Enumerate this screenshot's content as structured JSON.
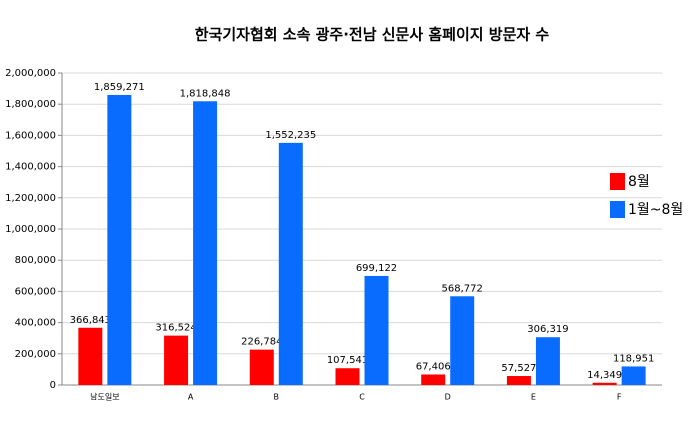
{
  "chart_data": {
    "type": "bar",
    "title": "한국기자협회 소속 광주·전남 신문사 홈페이지 방문자 수",
    "categories": [
      "남도일보",
      "A",
      "B",
      "C",
      "D",
      "E",
      "F"
    ],
    "series": [
      {
        "name": "8월",
        "color": "#ff0000",
        "values": [
          366843,
          316524,
          226784,
          107541,
          67406,
          57527,
          14349
        ],
        "value_labels": [
          "366,843",
          "316,524",
          "226,784",
          "107,541",
          "67,406",
          "57,527",
          "14,349"
        ]
      },
      {
        "name": "1월~8월",
        "color": "#0a6cff",
        "values": [
          1859271,
          1818848,
          1552235,
          699122,
          568772,
          306319,
          118951
        ],
        "value_labels": [
          "1,859,271",
          "1,818,848",
          "1,552,235",
          "699,122",
          "568,772",
          "306,319",
          "118,951"
        ]
      }
    ],
    "ylim": [
      0,
      2000000
    ],
    "yticks": [
      0,
      {
        "value": 200000,
        "label": "200,000"
      },
      {
        "value": 400000,
        "label": "400,000"
      },
      {
        "value": 600000,
        "label": "600,000"
      },
      {
        "value": 800000,
        "label": "800,000"
      },
      {
        "value": 1000000,
        "label": "1,000,000"
      },
      {
        "value": 1200000,
        "label": "1,200,000"
      },
      {
        "value": 1400000,
        "label": "1,400,000"
      },
      {
        "value": 1600000,
        "label": "1,600,000"
      },
      {
        "value": 1800000,
        "label": "1,800,000"
      },
      {
        "value": 2000000,
        "label": "2,000,000"
      }
    ],
    "grid": true,
    "legend": "right"
  }
}
